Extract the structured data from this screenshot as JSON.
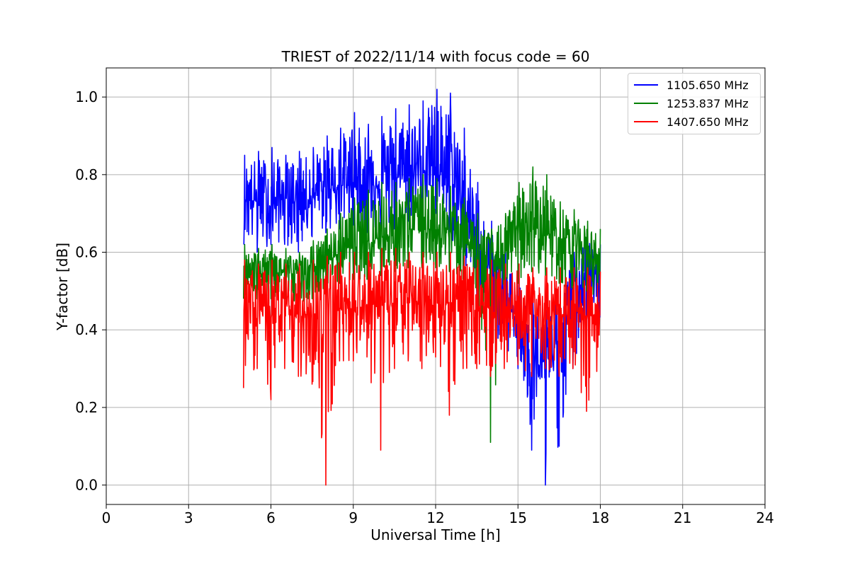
{
  "chart_data": {
    "type": "line",
    "title": "TRIEST of 2022/11/14 with focus code = 60",
    "xlabel": "Universal Time [h]",
    "ylabel": "Y-factor [dB]",
    "xlim": [
      0,
      24
    ],
    "ylim": [
      -0.05,
      1.075
    ],
    "xticks": [
      0,
      3,
      6,
      9,
      12,
      15,
      18,
      21,
      24
    ],
    "xtick_labels": [
      "0",
      "3",
      "6",
      "9",
      "12",
      "15",
      "18",
      "21",
      "24"
    ],
    "yticks": [
      0.0,
      0.2,
      0.4,
      0.6,
      0.8,
      1.0
    ],
    "ytick_labels": [
      "0.0",
      "0.2",
      "0.4",
      "0.6",
      "0.8",
      "1.0"
    ],
    "grid": true,
    "legend_position": "top-right",
    "series": [
      {
        "name": "1105.650 MHz",
        "color": "#0000ff",
        "x": [
          5.0,
          5.5,
          6.0,
          6.5,
          7.0,
          7.5,
          8.0,
          8.5,
          9.0,
          9.5,
          10.0,
          10.5,
          11.0,
          11.5,
          12.0,
          12.5,
          13.0,
          13.5,
          14.0,
          14.5,
          15.0,
          15.5,
          16.0,
          16.5,
          17.0,
          17.5,
          18.0
        ],
        "y_mid": [
          0.74,
          0.73,
          0.72,
          0.74,
          0.73,
          0.74,
          0.76,
          0.77,
          0.78,
          0.77,
          0.78,
          0.79,
          0.8,
          0.81,
          0.82,
          0.8,
          0.72,
          0.62,
          0.55,
          0.48,
          0.42,
          0.32,
          0.3,
          0.38,
          0.48,
          0.52,
          0.5
        ],
        "y_max": [
          0.85,
          0.86,
          0.87,
          0.85,
          0.86,
          0.87,
          0.9,
          0.92,
          0.96,
          0.93,
          0.95,
          0.97,
          0.98,
          0.99,
          1.02,
          1.01,
          0.92,
          0.78,
          0.68,
          0.6,
          0.55,
          0.48,
          0.45,
          0.5,
          0.6,
          0.65,
          0.62
        ],
        "y_min": [
          0.62,
          0.6,
          0.62,
          0.62,
          0.6,
          0.64,
          0.65,
          0.66,
          0.67,
          0.65,
          0.66,
          0.66,
          0.68,
          0.7,
          0.7,
          0.64,
          0.55,
          0.45,
          0.4,
          0.35,
          0.3,
          0.09,
          0.0,
          0.1,
          0.3,
          0.35,
          0.38
        ]
      },
      {
        "name": "1253.837 MHz",
        "color": "#008000",
        "x": [
          5.0,
          5.5,
          6.0,
          6.5,
          7.0,
          7.5,
          8.0,
          8.5,
          9.0,
          9.5,
          10.0,
          10.5,
          11.0,
          11.5,
          12.0,
          12.5,
          13.0,
          13.5,
          14.0,
          14.5,
          15.0,
          15.5,
          16.0,
          16.5,
          17.0,
          17.5,
          18.0
        ],
        "y_mid": [
          0.56,
          0.55,
          0.55,
          0.55,
          0.54,
          0.55,
          0.57,
          0.6,
          0.62,
          0.63,
          0.64,
          0.65,
          0.66,
          0.66,
          0.66,
          0.65,
          0.63,
          0.6,
          0.57,
          0.6,
          0.62,
          0.66,
          0.65,
          0.64,
          0.62,
          0.6,
          0.56
        ],
        "y_max": [
          0.62,
          0.61,
          0.62,
          0.61,
          0.6,
          0.63,
          0.66,
          0.7,
          0.74,
          0.76,
          0.78,
          0.78,
          0.79,
          0.8,
          0.79,
          0.77,
          0.74,
          0.7,
          0.66,
          0.7,
          0.78,
          0.82,
          0.8,
          0.73,
          0.71,
          0.68,
          0.66
        ],
        "y_min": [
          0.48,
          0.48,
          0.48,
          0.48,
          0.47,
          0.48,
          0.5,
          0.52,
          0.53,
          0.53,
          0.54,
          0.55,
          0.56,
          0.56,
          0.56,
          0.55,
          0.53,
          0.5,
          0.11,
          0.5,
          0.52,
          0.55,
          0.54,
          0.52,
          0.5,
          0.5,
          0.48
        ]
      },
      {
        "name": "1407.650 MHz",
        "color": "#ff0000",
        "x": [
          5.0,
          5.5,
          6.0,
          6.5,
          7.0,
          7.5,
          8.0,
          8.5,
          9.0,
          9.5,
          10.0,
          10.5,
          11.0,
          11.5,
          12.0,
          12.5,
          13.0,
          13.5,
          14.0,
          14.5,
          15.0,
          15.5,
          16.0,
          16.5,
          17.0,
          17.5,
          18.0
        ],
        "y_mid": [
          0.45,
          0.44,
          0.44,
          0.44,
          0.44,
          0.44,
          0.45,
          0.45,
          0.46,
          0.46,
          0.46,
          0.47,
          0.47,
          0.47,
          0.47,
          0.47,
          0.47,
          0.46,
          0.46,
          0.45,
          0.45,
          0.44,
          0.44,
          0.44,
          0.44,
          0.44,
          0.44
        ],
        "y_max": [
          0.58,
          0.57,
          0.58,
          0.57,
          0.57,
          0.58,
          0.59,
          0.6,
          0.6,
          0.6,
          0.61,
          0.61,
          0.6,
          0.6,
          0.6,
          0.6,
          0.59,
          0.58,
          0.58,
          0.57,
          0.57,
          0.56,
          0.56,
          0.56,
          0.56,
          0.56,
          0.55
        ],
        "y_min": [
          0.25,
          0.3,
          0.22,
          0.3,
          0.28,
          0.26,
          0.0,
          0.32,
          0.32,
          0.33,
          0.09,
          0.3,
          0.32,
          0.3,
          0.33,
          0.18,
          0.3,
          0.3,
          0.28,
          0.3,
          0.31,
          0.28,
          0.3,
          0.28,
          0.3,
          0.19,
          0.32
        ]
      }
    ]
  }
}
